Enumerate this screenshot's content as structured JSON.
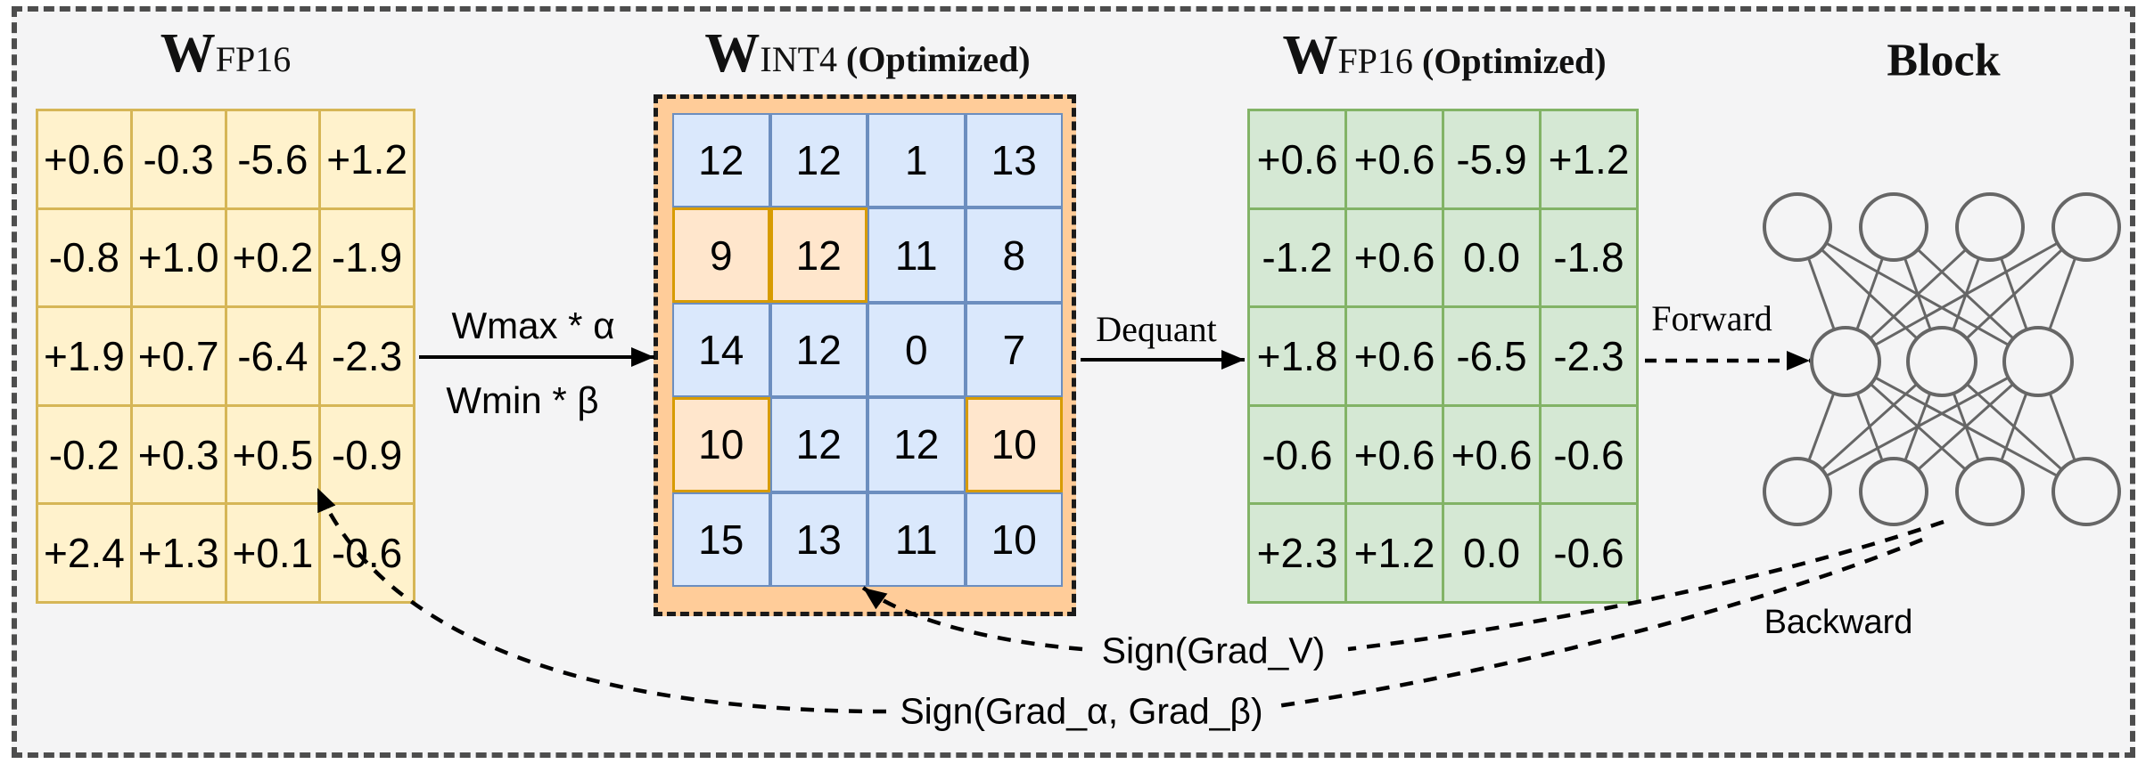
{
  "diagram": {
    "background": "#f4f4f5",
    "frame_border_color": "#4d4d4d"
  },
  "titles": {
    "fp16": {
      "main": "W",
      "sub": "FP16",
      "suffix": ""
    },
    "int4": {
      "main": "W",
      "sub": "INT4",
      "suffix": "(Optimized)"
    },
    "fp16_opt": {
      "main": "W",
      "sub": "FP16",
      "suffix": "(Optimized)"
    },
    "block": "Block"
  },
  "matrices": {
    "fp16": {
      "fill": "#fff2cc",
      "stroke": "#d6b656",
      "values": [
        [
          "+0.6",
          "-0.3",
          "-5.6",
          "+1.2"
        ],
        [
          "-0.8",
          "+1.0",
          "+0.2",
          "-1.9"
        ],
        [
          "+1.9",
          "+0.7",
          "-6.4",
          "-2.3"
        ],
        [
          "-0.2",
          "+0.3",
          "+0.5",
          "-0.9"
        ],
        [
          "+2.4",
          "+1.3",
          "+0.1",
          "-0.6"
        ]
      ]
    },
    "int4": {
      "fill": "#dae8fc",
      "stroke": "#6c8ebf",
      "highlight_fill": "#ffe6cc",
      "highlight_stroke": "#d79b00",
      "frame_fill": "#ffcc99",
      "values": [
        [
          "12",
          "12",
          "1",
          "13"
        ],
        [
          "9",
          "12",
          "11",
          "8"
        ],
        [
          "14",
          "12",
          "0",
          "7"
        ],
        [
          "10",
          "12",
          "12",
          "10"
        ],
        [
          "15",
          "13",
          "11",
          "10"
        ]
      ],
      "highlights": [
        [
          1,
          0
        ],
        [
          1,
          1
        ],
        [
          3,
          0
        ],
        [
          3,
          3
        ]
      ]
    },
    "fp16_opt": {
      "fill": "#d5e8d4",
      "stroke": "#82b366",
      "values": [
        [
          "+0.6",
          "+0.6",
          "-5.9",
          "+1.2"
        ],
        [
          "-1.2",
          "+0.6",
          "0.0",
          "-1.8"
        ],
        [
          "+1.8",
          "+0.6",
          "-6.5",
          "-2.3"
        ],
        [
          "-0.6",
          "+0.6",
          "+0.6",
          "-0.6"
        ],
        [
          "+2.3",
          "+1.2",
          "0.0",
          "-0.6"
        ]
      ]
    }
  },
  "labels": {
    "quant_top": "Wmax * α",
    "quant_bottom": "Wmin * β",
    "dequant": "Dequant",
    "forward": "Forward",
    "backward": "Backward",
    "grad_v": "Sign(Grad_V)",
    "grad_ab": "Sign(Grad_α, Grad_β)"
  },
  "block": {
    "layers": [
      4,
      3,
      4
    ],
    "node_color": "#666666"
  }
}
